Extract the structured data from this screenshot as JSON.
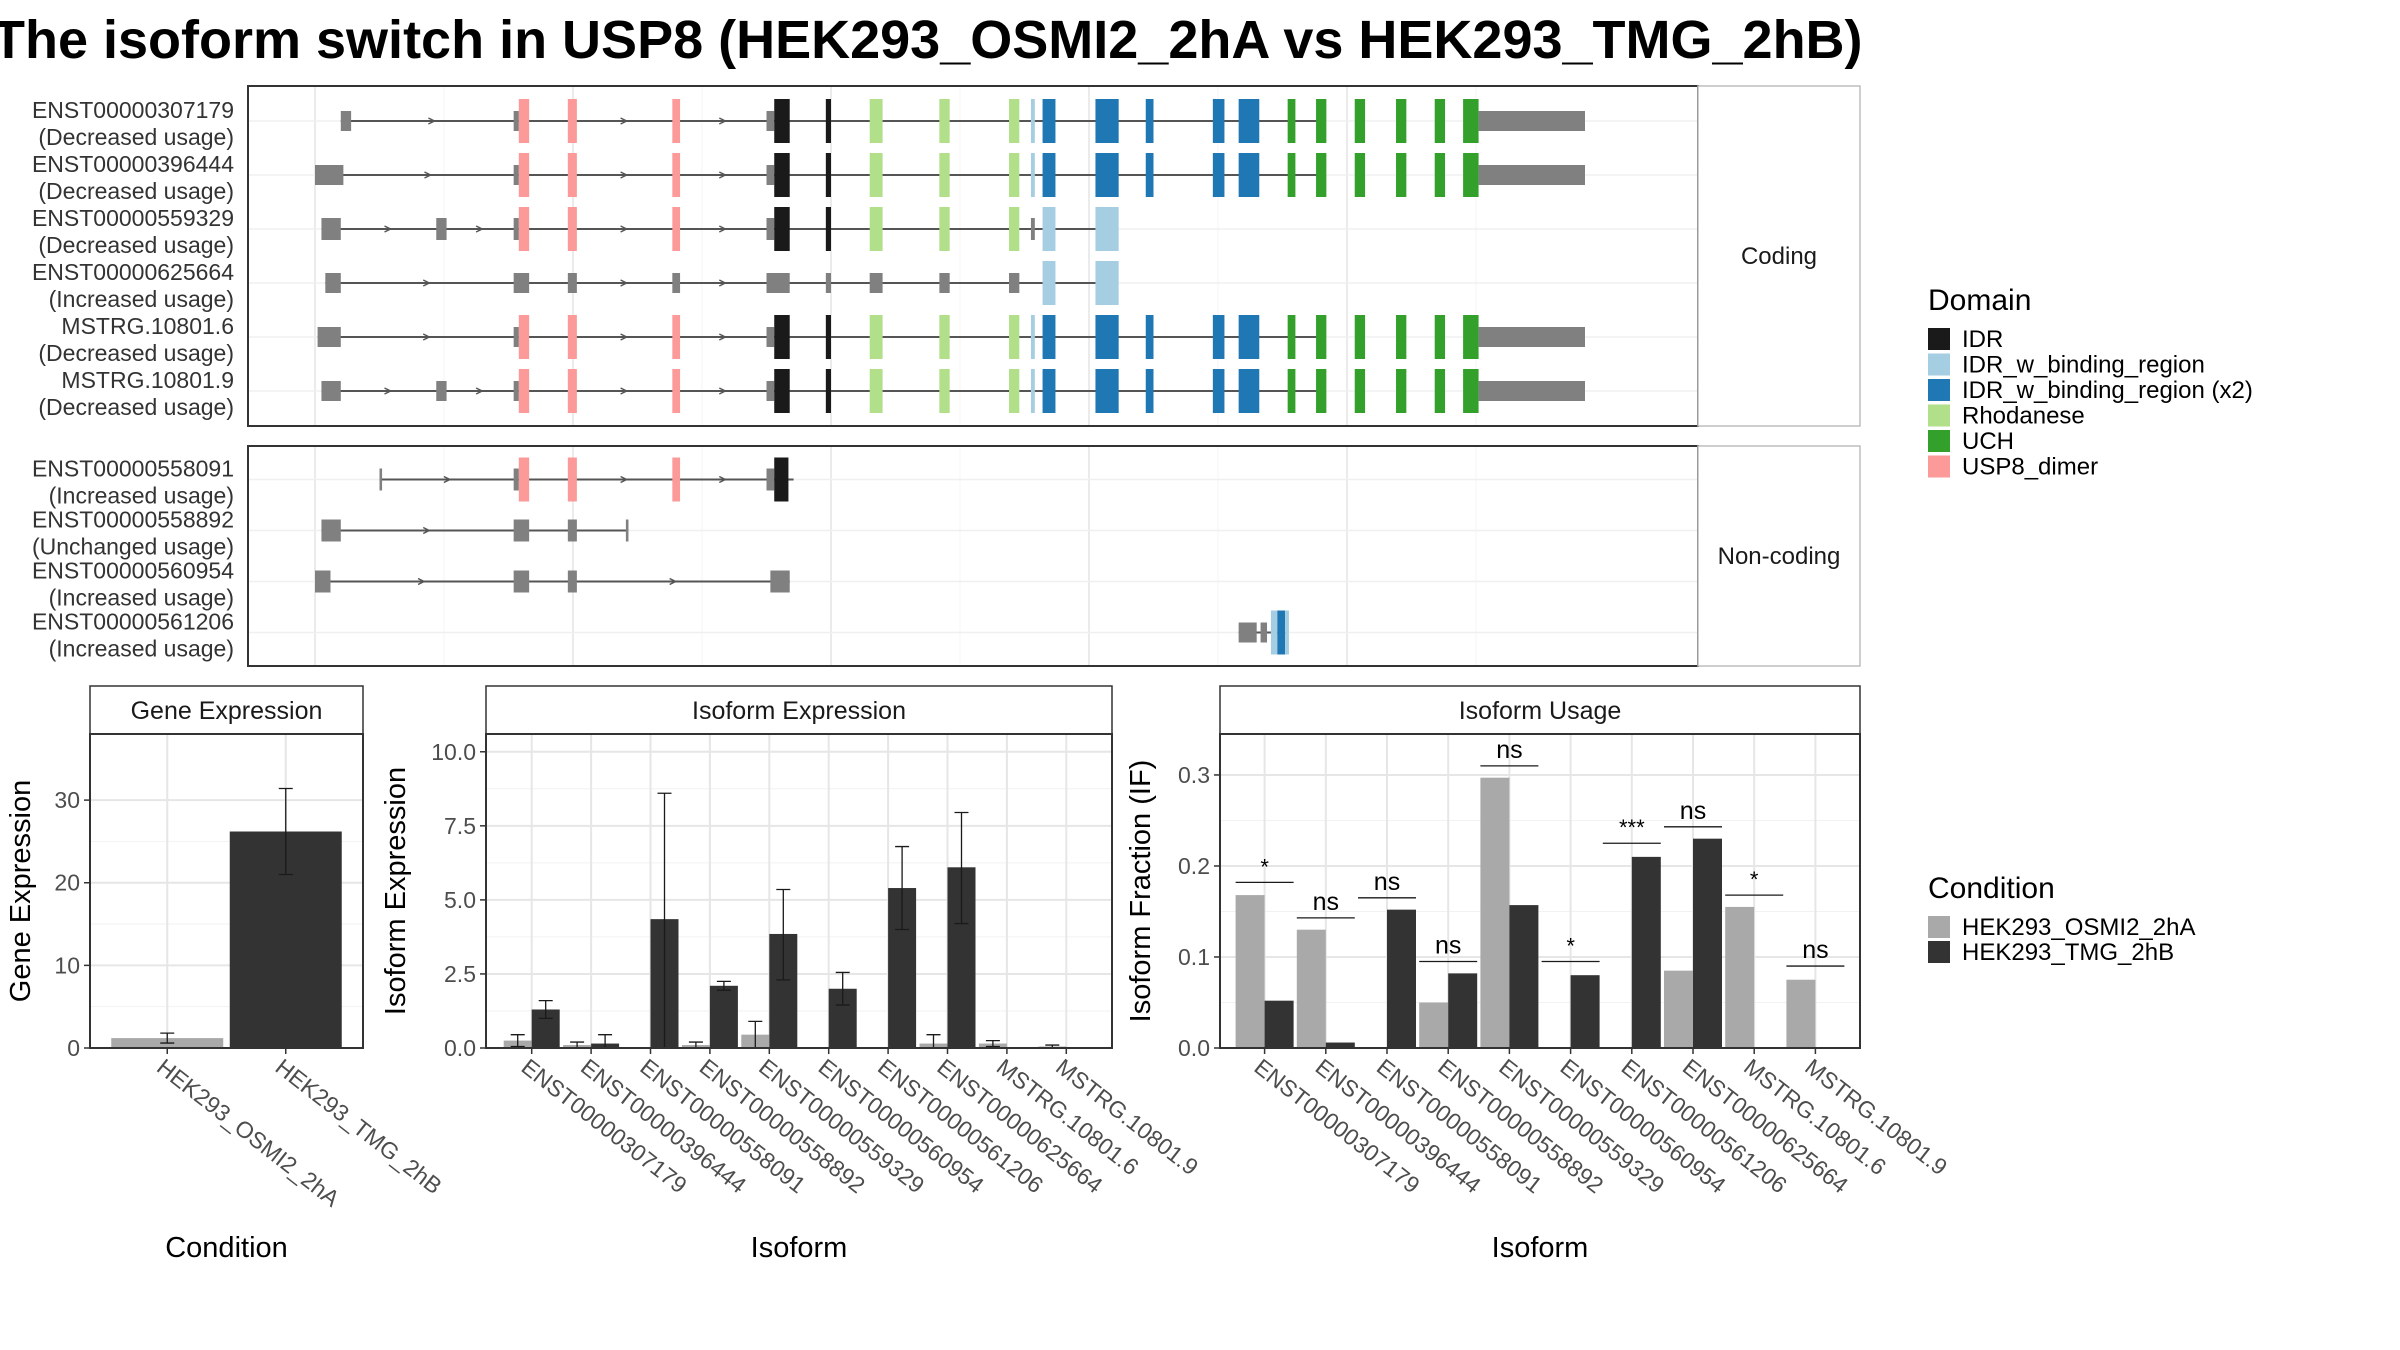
{
  "title": "The isoform switch in USP8 (HEK293_OSMI2_2hA vs HEK293_TMG_2hB)",
  "colors": {
    "intron": "#555555",
    "exon_plain": "#808080",
    "cond1": "#a9a9a9",
    "cond2": "#333333",
    "IDR": "#1a1a1a",
    "IDR_w_binding_region": "#a6cee3",
    "IDR_w_binding_region_x2": "#1f78b4",
    "Rhodanese": "#b2df8a",
    "UCH": "#33a02c",
    "USP8_dimer": "#fb9a99"
  },
  "structure": {
    "coding_label": "Coding",
    "noncoding_label": "Non-coding",
    "coding": [
      {
        "id": "ENST00000307179",
        "usage": "(Decreased usage)",
        "start": 0.02,
        "end": 0.86,
        "utr_end": 0.782,
        "exons": [
          [
            0.02,
            0.028,
            "plain"
          ],
          [
            0.154,
            0.158,
            "plain"
          ],
          [
            0.158,
            0.166,
            "USP8_dimer"
          ],
          [
            0.196,
            0.203,
            "USP8_dimer"
          ],
          [
            0.277,
            0.283,
            "USP8_dimer"
          ],
          [
            0.35,
            0.356,
            "plain"
          ],
          [
            0.356,
            0.368,
            "IDR"
          ],
          [
            0.396,
            0.4,
            "IDR"
          ],
          [
            0.43,
            0.44,
            "Rhodanese"
          ],
          [
            0.484,
            0.492,
            "Rhodanese"
          ],
          [
            0.538,
            0.546,
            "Rhodanese"
          ],
          [
            0.555,
            0.558,
            "IDR_w_binding_region"
          ],
          [
            0.564,
            0.574,
            "IDR_w_binding_region_x2"
          ],
          [
            0.605,
            0.623,
            "IDR_w_binding_region_x2"
          ],
          [
            0.644,
            0.65,
            "IDR_w_binding_region_x2"
          ],
          [
            0.696,
            0.705,
            "IDR_w_binding_region_x2"
          ],
          [
            0.716,
            0.732,
            "IDR_w_binding_region_x2"
          ],
          [
            0.754,
            0.76,
            "UCH"
          ],
          [
            0.776,
            0.784,
            "UCH"
          ],
          [
            0.806,
            0.814,
            "UCH"
          ],
          [
            0.838,
            0.846,
            "UCH"
          ],
          [
            0.868,
            0.876,
            "UCH"
          ],
          [
            0.89,
            0.902,
            "UCH"
          ]
        ]
      },
      {
        "id": "ENST00000396444",
        "usage": "(Decreased usage)",
        "start": 0.0,
        "end": 0.86,
        "utr_end": 0.782,
        "exons": [
          [
            0.0,
            0.022,
            "plain"
          ],
          [
            0.154,
            0.158,
            "plain"
          ],
          [
            0.158,
            0.166,
            "USP8_dimer"
          ],
          [
            0.196,
            0.203,
            "USP8_dimer"
          ],
          [
            0.277,
            0.283,
            "USP8_dimer"
          ],
          [
            0.35,
            0.356,
            "plain"
          ],
          [
            0.356,
            0.368,
            "IDR"
          ],
          [
            0.396,
            0.4,
            "IDR"
          ],
          [
            0.43,
            0.44,
            "Rhodanese"
          ],
          [
            0.484,
            0.492,
            "Rhodanese"
          ],
          [
            0.538,
            0.546,
            "Rhodanese"
          ],
          [
            0.555,
            0.558,
            "IDR_w_binding_region"
          ],
          [
            0.564,
            0.574,
            "IDR_w_binding_region_x2"
          ],
          [
            0.605,
            0.623,
            "IDR_w_binding_region_x2"
          ],
          [
            0.644,
            0.65,
            "IDR_w_binding_region_x2"
          ],
          [
            0.696,
            0.705,
            "IDR_w_binding_region_x2"
          ],
          [
            0.716,
            0.732,
            "IDR_w_binding_region_x2"
          ],
          [
            0.754,
            0.76,
            "UCH"
          ],
          [
            0.776,
            0.784,
            "UCH"
          ],
          [
            0.806,
            0.814,
            "UCH"
          ],
          [
            0.838,
            0.846,
            "UCH"
          ],
          [
            0.868,
            0.876,
            "UCH"
          ],
          [
            0.89,
            0.902,
            "UCH"
          ]
        ]
      },
      {
        "id": "ENST00000559329",
        "usage": "(Decreased usage)",
        "start": 0.005,
        "end": 0.614,
        "exons": [
          [
            0.005,
            0.02,
            "plain"
          ],
          [
            0.094,
            0.102,
            "plain"
          ],
          [
            0.154,
            0.158,
            "plain"
          ],
          [
            0.158,
            0.166,
            "USP8_dimer"
          ],
          [
            0.196,
            0.203,
            "USP8_dimer"
          ],
          [
            0.277,
            0.283,
            "USP8_dimer"
          ],
          [
            0.35,
            0.356,
            "plain"
          ],
          [
            0.356,
            0.368,
            "IDR"
          ],
          [
            0.396,
            0.4,
            "IDR"
          ],
          [
            0.43,
            0.44,
            "Rhodanese"
          ],
          [
            0.484,
            0.492,
            "Rhodanese"
          ],
          [
            0.538,
            0.546,
            "Rhodanese"
          ],
          [
            0.555,
            0.558,
            "plain"
          ],
          [
            0.564,
            0.574,
            "IDR_w_binding_region"
          ],
          [
            0.605,
            0.623,
            "IDR_w_binding_region"
          ]
        ]
      },
      {
        "id": "ENST00000625664",
        "usage": "(Increased usage)",
        "start": 0.008,
        "end": 0.614,
        "exons": [
          [
            0.008,
            0.02,
            "plain"
          ],
          [
            0.154,
            0.166,
            "plain"
          ],
          [
            0.196,
            0.203,
            "plain"
          ],
          [
            0.277,
            0.283,
            "plain"
          ],
          [
            0.35,
            0.368,
            "plain"
          ],
          [
            0.396,
            0.4,
            "plain"
          ],
          [
            0.43,
            0.44,
            "plain"
          ],
          [
            0.484,
            0.492,
            "plain"
          ],
          [
            0.538,
            0.546,
            "plain"
          ],
          [
            0.564,
            0.574,
            "IDR_w_binding_region"
          ],
          [
            0.605,
            0.623,
            "IDR_w_binding_region"
          ]
        ]
      },
      {
        "id": "MSTRG.10801.6",
        "usage": "(Decreased usage)",
        "start": 0.002,
        "end": 0.86,
        "utr_end": 0.782,
        "exons": [
          [
            0.002,
            0.02,
            "plain"
          ],
          [
            0.154,
            0.158,
            "plain"
          ],
          [
            0.158,
            0.166,
            "USP8_dimer"
          ],
          [
            0.196,
            0.203,
            "USP8_dimer"
          ],
          [
            0.277,
            0.283,
            "USP8_dimer"
          ],
          [
            0.35,
            0.356,
            "plain"
          ],
          [
            0.356,
            0.368,
            "IDR"
          ],
          [
            0.396,
            0.4,
            "IDR"
          ],
          [
            0.43,
            0.44,
            "Rhodanese"
          ],
          [
            0.484,
            0.492,
            "Rhodanese"
          ],
          [
            0.538,
            0.546,
            "Rhodanese"
          ],
          [
            0.555,
            0.558,
            "IDR_w_binding_region"
          ],
          [
            0.564,
            0.574,
            "IDR_w_binding_region_x2"
          ],
          [
            0.605,
            0.623,
            "IDR_w_binding_region_x2"
          ],
          [
            0.644,
            0.65,
            "IDR_w_binding_region_x2"
          ],
          [
            0.696,
            0.705,
            "IDR_w_binding_region_x2"
          ],
          [
            0.716,
            0.732,
            "IDR_w_binding_region_x2"
          ],
          [
            0.754,
            0.76,
            "UCH"
          ],
          [
            0.776,
            0.784,
            "UCH"
          ],
          [
            0.806,
            0.814,
            "UCH"
          ],
          [
            0.838,
            0.846,
            "UCH"
          ],
          [
            0.868,
            0.876,
            "UCH"
          ],
          [
            0.89,
            0.902,
            "UCH"
          ]
        ]
      },
      {
        "id": "MSTRG.10801.9",
        "usage": "(Decreased usage)",
        "start": 0.005,
        "end": 0.86,
        "utr_end": 0.782,
        "exons": [
          [
            0.005,
            0.02,
            "plain"
          ],
          [
            0.094,
            0.102,
            "plain"
          ],
          [
            0.154,
            0.158,
            "plain"
          ],
          [
            0.158,
            0.166,
            "USP8_dimer"
          ],
          [
            0.196,
            0.203,
            "USP8_dimer"
          ],
          [
            0.277,
            0.283,
            "USP8_dimer"
          ],
          [
            0.35,
            0.356,
            "plain"
          ],
          [
            0.356,
            0.368,
            "IDR"
          ],
          [
            0.396,
            0.4,
            "IDR"
          ],
          [
            0.43,
            0.44,
            "Rhodanese"
          ],
          [
            0.484,
            0.492,
            "Rhodanese"
          ],
          [
            0.538,
            0.546,
            "Rhodanese"
          ],
          [
            0.555,
            0.558,
            "IDR_w_binding_region"
          ],
          [
            0.564,
            0.574,
            "IDR_w_binding_region_x2"
          ],
          [
            0.605,
            0.623,
            "IDR_w_binding_region_x2"
          ],
          [
            0.644,
            0.65,
            "IDR_w_binding_region_x2"
          ],
          [
            0.696,
            0.705,
            "IDR_w_binding_region_x2"
          ],
          [
            0.716,
            0.732,
            "IDR_w_binding_region_x2"
          ],
          [
            0.754,
            0.76,
            "UCH"
          ],
          [
            0.776,
            0.784,
            "UCH"
          ],
          [
            0.806,
            0.814,
            "UCH"
          ],
          [
            0.838,
            0.846,
            "UCH"
          ],
          [
            0.868,
            0.876,
            "UCH"
          ],
          [
            0.89,
            0.902,
            "UCH"
          ]
        ]
      }
    ],
    "noncoding": [
      {
        "id": "ENST00000558091",
        "usage": "(Increased usage)",
        "start": 0.05,
        "end": 0.371,
        "exons": [
          [
            0.05,
            0.052,
            "plain"
          ],
          [
            0.154,
            0.158,
            "plain"
          ],
          [
            0.158,
            0.166,
            "USP8_dimer"
          ],
          [
            0.196,
            0.203,
            "USP8_dimer"
          ],
          [
            0.277,
            0.283,
            "USP8_dimer"
          ],
          [
            0.35,
            0.356,
            "plain"
          ],
          [
            0.356,
            0.367,
            "IDR"
          ]
        ]
      },
      {
        "id": "ENST00000558892",
        "usage": "(Unchanged usage)",
        "start": 0.005,
        "end": 0.243,
        "exons": [
          [
            0.005,
            0.02,
            "plain"
          ],
          [
            0.154,
            0.166,
            "plain"
          ],
          [
            0.196,
            0.203,
            "plain"
          ],
          [
            0.241,
            0.243,
            "plain"
          ]
        ]
      },
      {
        "id": "ENST00000560954",
        "usage": "(Increased usage)",
        "start": 0.0,
        "end": 0.368,
        "exons": [
          [
            0.0,
            0.012,
            "plain"
          ],
          [
            0.154,
            0.166,
            "plain"
          ],
          [
            0.196,
            0.203,
            "plain"
          ],
          [
            0.353,
            0.368,
            "plain"
          ]
        ]
      },
      {
        "id": "ENST00000561206",
        "usage": "(Increased usage)",
        "start": 0.716,
        "end": 0.754,
        "exons": [
          [
            0.716,
            0.73,
            "plain"
          ],
          [
            0.733,
            0.738,
            "plain"
          ],
          [
            0.741,
            0.746,
            "IDR_w_binding_region"
          ],
          [
            0.746,
            0.752,
            "IDR_w_binding_region_x2"
          ],
          [
            0.752,
            0.755,
            "IDR_w_binding_region"
          ]
        ]
      }
    ]
  },
  "legend_domain": {
    "title": "Domain",
    "items": [
      {
        "label": "IDR",
        "color": "#1a1a1a"
      },
      {
        "label": "IDR_w_binding_region",
        "color": "#a6cee3"
      },
      {
        "label": "IDR_w_binding_region (x2)",
        "color": "#1f78b4"
      },
      {
        "label": "Rhodanese",
        "color": "#b2df8a"
      },
      {
        "label": "UCH",
        "color": "#33a02c"
      },
      {
        "label": "USP8_dimer",
        "color": "#fb9a99"
      }
    ]
  },
  "legend_condition": {
    "title": "Condition",
    "items": [
      {
        "label": "HEK293_OSMI2_2hA",
        "color": "#a9a9a9"
      },
      {
        "label": "HEK293_TMG_2hB",
        "color": "#333333"
      }
    ]
  },
  "chart_data": [
    {
      "type": "bar",
      "title": "Gene Expression",
      "xlabel": "Condition",
      "ylabel": "Gene Expression",
      "ylim": [
        0,
        38
      ],
      "yticks": [
        0,
        10,
        20,
        30
      ],
      "categories": [
        "HEK293_OSMI2_2hA",
        "HEK293_TMG_2hB"
      ],
      "values": [
        1.2,
        26.2
      ],
      "errors": [
        [
          0.6,
          1.8
        ],
        [
          21.0,
          31.4
        ]
      ]
    },
    {
      "type": "bar",
      "title": "Isoform Expression",
      "xlabel": "Isoform",
      "ylabel": "Isoform Expression",
      "ylim": [
        0,
        10.6
      ],
      "yticks": [
        "0.0",
        "2.5",
        "5.0",
        "7.5",
        "10.0"
      ],
      "categories": [
        "ENST00000307179",
        "ENST00000396444",
        "ENST00000558091",
        "ENST00000558892",
        "ENST00000559329",
        "ENST00000560954",
        "ENST00000561206",
        "ENST00000625664",
        "MSTRG.10801.6",
        "MSTRG.10801.9"
      ],
      "series": [
        {
          "name": "HEK293_OSMI2_2hA",
          "values": [
            0.25,
            0.1,
            0.0,
            0.1,
            0.45,
            0.0,
            0.0,
            0.15,
            0.15,
            0.05
          ],
          "errors": [
            [
              0.05,
              0.45
            ],
            [
              0.0,
              0.2
            ],
            [
              0.0,
              0.0
            ],
            [
              0.0,
              0.2
            ],
            [
              0.0,
              0.9
            ],
            [
              0.0,
              0.0
            ],
            [
              0.0,
              0.0
            ],
            [
              0.0,
              0.45
            ],
            [
              0.05,
              0.25
            ],
            [
              0.0,
              0.1
            ]
          ]
        },
        {
          "name": "HEK293_TMG_2hB",
          "values": [
            1.3,
            0.15,
            4.35,
            2.1,
            3.85,
            2.0,
            5.4,
            6.1,
            0.0,
            0.0
          ],
          "errors": [
            [
              1.0,
              1.6
            ],
            [
              0.0,
              0.45
            ],
            [
              0.0,
              8.6
            ],
            [
              1.95,
              2.25
            ],
            [
              2.3,
              5.35
            ],
            [
              1.45,
              2.55
            ],
            [
              4.0,
              6.8
            ],
            [
              4.2,
              7.95
            ],
            [
              0.0,
              0.0
            ],
            [
              0.0,
              0.0
            ]
          ]
        }
      ]
    },
    {
      "type": "bar",
      "title": "Isoform Usage",
      "xlabel": "Isoform",
      "ylabel": "Isoform Fraction (IF)",
      "ylim": [
        0,
        0.345
      ],
      "yticks": [
        "0.0",
        "0.1",
        "0.2",
        "0.3"
      ],
      "categories": [
        "ENST00000307179",
        "ENST00000396444",
        "ENST00000558091",
        "ENST00000558892",
        "ENST00000559329",
        "ENST00000560954",
        "ENST00000561206",
        "ENST00000625664",
        "MSTRG.10801.6",
        "MSTRG.10801.9"
      ],
      "series": [
        {
          "name": "HEK293_OSMI2_2hA",
          "values": [
            0.168,
            0.13,
            0.0,
            0.05,
            0.297,
            0.0,
            0.0,
            0.085,
            0.155,
            0.075
          ]
        },
        {
          "name": "HEK293_TMG_2hB",
          "values": [
            0.052,
            0.006,
            0.152,
            0.082,
            0.157,
            0.08,
            0.21,
            0.23,
            0.0,
            0.0
          ]
        }
      ],
      "significance": [
        "*",
        "ns",
        "ns",
        "ns",
        "ns",
        "*",
        "***",
        "ns",
        "*",
        "ns"
      ],
      "sig_y": [
        0.182,
        0.143,
        0.165,
        0.095,
        0.31,
        0.095,
        0.225,
        0.243,
        0.168,
        0.09
      ]
    }
  ]
}
